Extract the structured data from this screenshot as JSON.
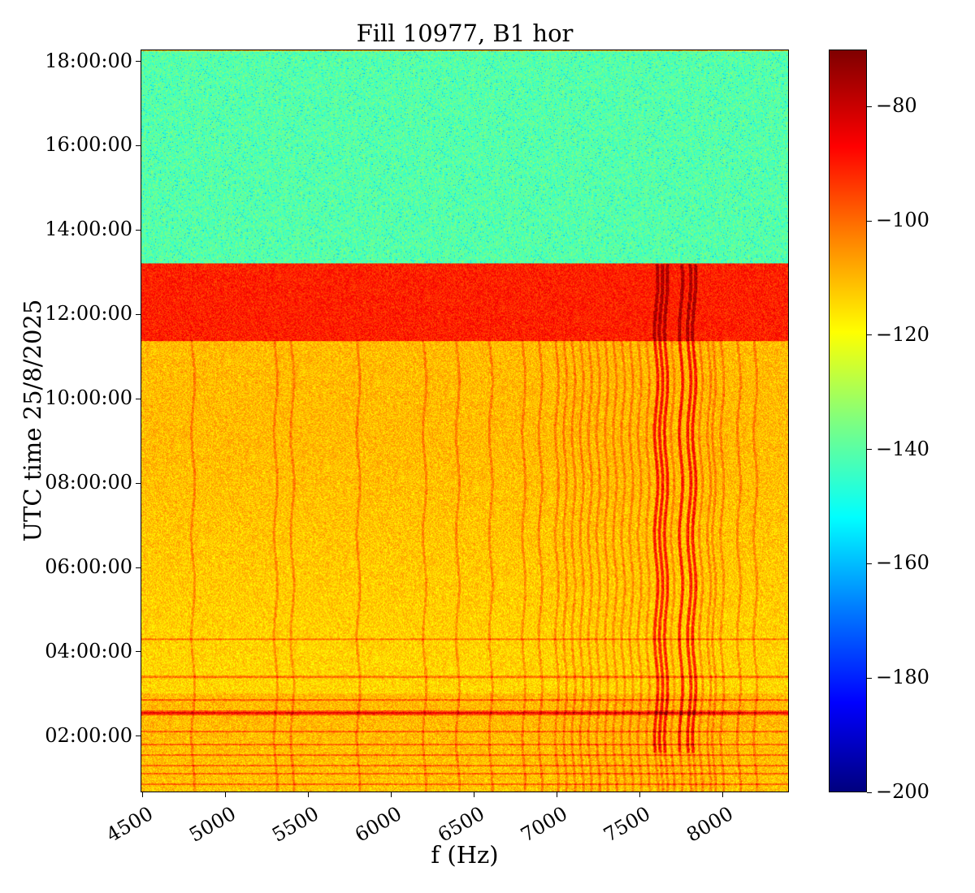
{
  "chart_data": {
    "type": "heatmap",
    "title": "Fill 10977, B1 hor",
    "xlabel": "f (Hz)",
    "ylabel": "UTC time 25/8/2025",
    "xlim": [
      4490,
      8400
    ],
    "ylim_hours": [
      0.67,
      18.28
    ],
    "xticks": [
      4500,
      5000,
      5500,
      6000,
      6500,
      7000,
      7500,
      8000
    ],
    "xtick_labels": [
      "4500",
      "5000",
      "5500",
      "6000",
      "6500",
      "7000",
      "7500",
      "8000"
    ],
    "yticks_hours": [
      2,
      4,
      6,
      8,
      10,
      12,
      14,
      16,
      18
    ],
    "ytick_labels": [
      "02:00:00",
      "04:00:00",
      "06:00:00",
      "08:00:00",
      "10:00:00",
      "12:00:00",
      "14:00:00",
      "16:00:00",
      "18:00:00"
    ],
    "colorbar": {
      "colormap": "jet",
      "range": [
        -200,
        -70
      ],
      "ticks": [
        -80,
        -100,
        -120,
        -140,
        -160,
        -180,
        -200
      ],
      "tick_labels": [
        "−80",
        "−100",
        "−120",
        "−140",
        "−160",
        "−180",
        "−200"
      ]
    },
    "time_bands": [
      {
        "from_h": 13.22,
        "to_h": 18.28,
        "level_db": -140
      },
      {
        "from_h": 11.38,
        "to_h": 13.22,
        "level_db": -90
      },
      {
        "from_h": 0.67,
        "to_h": 11.38,
        "level_db": -110
      }
    ],
    "spectral_lines_hz": [
      4800,
      5300,
      5400,
      5800,
      6200,
      6400,
      6600,
      6800,
      6900,
      7000,
      7050,
      7100,
      7150,
      7200,
      7250,
      7300,
      7350,
      7400,
      7450,
      7500,
      7550,
      7600,
      7630,
      7660,
      7700,
      7750,
      7800,
      7830,
      7870,
      7920,
      7950,
      8000,
      8100,
      8200
    ],
    "strong_lines_hz": [
      7600,
      7630,
      7660,
      7750,
      7800,
      7830
    ],
    "horizontal_lines_h": [
      0.85,
      1.1,
      1.3,
      1.55,
      1.8,
      2.1,
      2.55,
      2.85,
      3.4,
      4.3
    ]
  }
}
